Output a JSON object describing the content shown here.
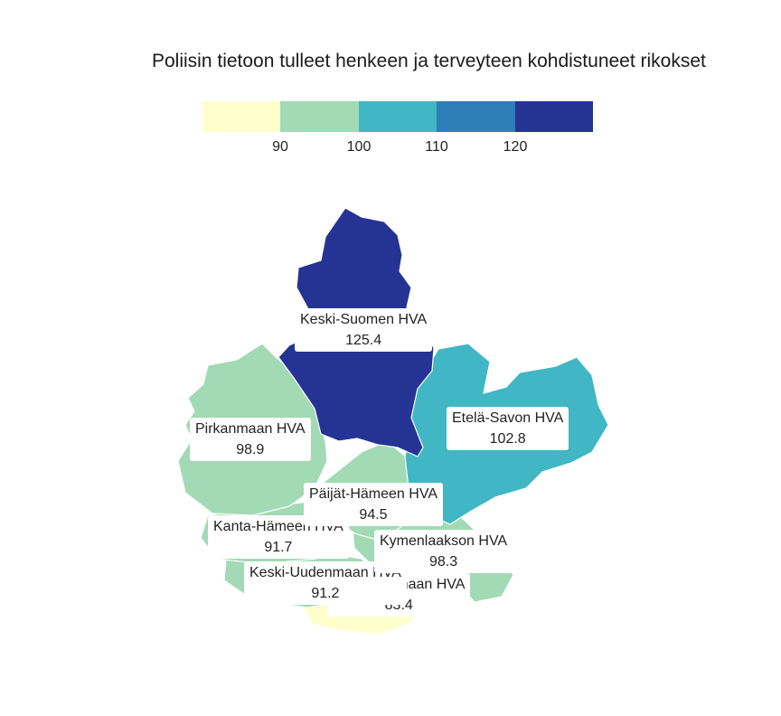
{
  "title": "Poliisin tietoon tulleet henkeen ja terveyteen kohdistuneet rikokset",
  "legend": {
    "colors": [
      "#ffffcc",
      "#a1dab4",
      "#41b6c4",
      "#2c7fb8",
      "#253494"
    ],
    "ticks": [
      "90",
      "100",
      "110",
      "120"
    ]
  },
  "regions": [
    {
      "name": "Keski-Suomen HVA",
      "value": "125.4",
      "color": "#253494"
    },
    {
      "name": "Etelä-Savon HVA",
      "value": "102.8",
      "color": "#41b6c4"
    },
    {
      "name": "Pirkanmaan HVA",
      "value": "98.9",
      "color": "#a1dab4"
    },
    {
      "name": "Päijät-Hämeen HVA",
      "value": "94.5",
      "color": "#a1dab4"
    },
    {
      "name": "Kanta-Hämeen HVA",
      "value": "91.7",
      "color": "#a1dab4"
    },
    {
      "name": "Kymenlaakson HVA",
      "value": "98.3",
      "color": "#a1dab4"
    },
    {
      "name": "Keski-Uudenmaan HVA",
      "value": "91.2",
      "color": "#a1dab4"
    },
    {
      "name": "Itä-Uudenmaan HVA",
      "value": "83.4",
      "color": "#ffffcc"
    }
  ]
}
